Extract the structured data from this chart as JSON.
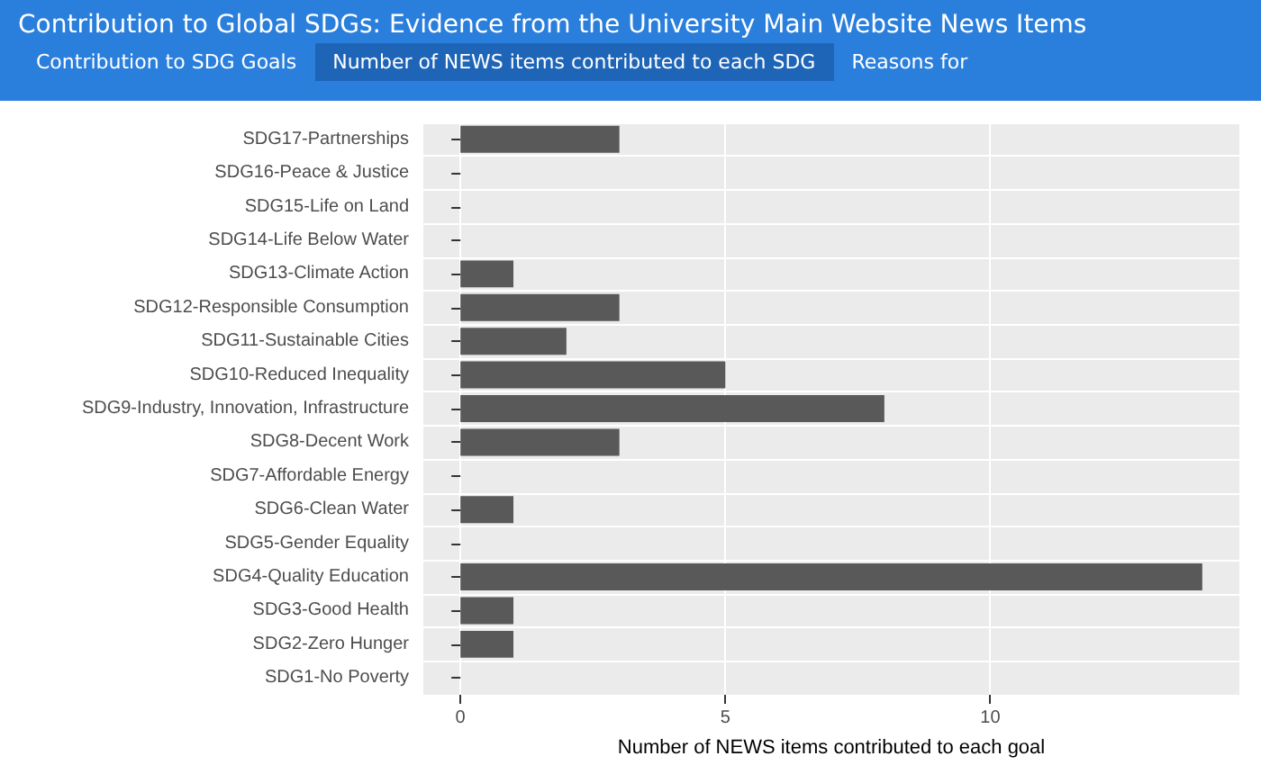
{
  "chart_data": {
    "type": "bar",
    "orientation": "horizontal",
    "title": "Contribution to Global SDGs: Evidence from the University Main Website News Items",
    "annotations": [
      "Contribution to SDG Goals",
      "Number of NEWS items contributed to each SDG",
      "Reasons for"
    ],
    "categories": [
      "SDG17-Partnerships",
      "SDG16-Peace & Justice",
      "SDG15-Life on Land",
      "SDG14-Life Below Water",
      "SDG13-Climate Action",
      "SDG12-Responsible Consumption",
      "SDG11-Sustainable Cities",
      "SDG10-Reduced Inequality",
      "SDG9-Industry, Innovation, Infrastructure",
      "SDG8-Decent Work",
      "SDG7-Affordable Energy",
      "SDG6-Clean Water",
      "SDG5-Gender Equality",
      "SDG4-Quality Education",
      "SDG3-Good Health",
      "SDG2-Zero Hunger",
      "SDG1-No Poverty"
    ],
    "values": [
      3,
      0,
      0,
      0,
      1,
      3,
      2,
      5,
      8,
      3,
      0,
      1,
      0,
      14,
      1,
      1,
      0
    ],
    "color": "#595959",
    "xlabel": "Number of NEWS items contributed to each goal",
    "xlim": [
      -0.7,
      14.7
    ],
    "xticks": [
      0,
      5,
      10
    ],
    "grid": true
  }
}
